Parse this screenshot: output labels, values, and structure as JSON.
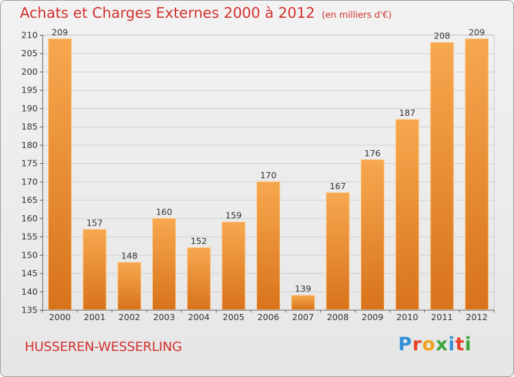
{
  "header": {
    "title": "Achats et Charges Externes 2000 à 2012",
    "unit": "(en milliers d'€)"
  },
  "footer": {
    "city": "HUSSEREN-WESSERLING",
    "logo": "Proxiti"
  },
  "colors": {
    "title": "#d2312e",
    "bar_top": "#f7a84f",
    "bar_bottom": "#d8731b",
    "bar_edge": "#fbd6a8"
  },
  "chart_data": {
    "type": "bar",
    "categories": [
      "2000",
      "2001",
      "2002",
      "2003",
      "2004",
      "2005",
      "2006",
      "2007",
      "2008",
      "2009",
      "2010",
      "2011",
      "2012"
    ],
    "values": [
      209,
      157,
      148,
      160,
      152,
      159,
      170,
      139,
      167,
      176,
      187,
      208,
      209
    ],
    "ylim": [
      135,
      210
    ],
    "yticks": [
      135,
      140,
      145,
      150,
      155,
      160,
      165,
      170,
      175,
      180,
      185,
      190,
      195,
      200,
      205,
      210
    ],
    "grid": true,
    "legend": "none"
  }
}
